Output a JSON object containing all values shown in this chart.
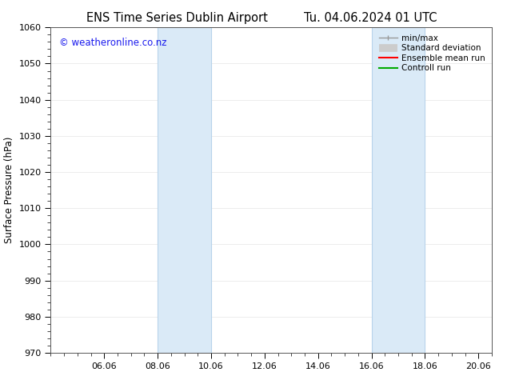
{
  "title_left": "ENS Time Series Dublin Airport",
  "title_right": "Tu. 04.06.2024 01 UTC",
  "ylabel": "Surface Pressure (hPa)",
  "ylim": [
    970,
    1060
  ],
  "yticks": [
    970,
    980,
    990,
    1000,
    1010,
    1020,
    1030,
    1040,
    1050,
    1060
  ],
  "xlim": [
    0,
    16.5
  ],
  "xtick_labels": [
    "06.06",
    "08.06",
    "10.06",
    "12.06",
    "14.06",
    "16.06",
    "18.06",
    "20.06"
  ],
  "xtick_positions": [
    2,
    4,
    6,
    8,
    10,
    12,
    14,
    16
  ],
  "shaded_bands": [
    {
      "x_start": 4,
      "x_end": 6
    },
    {
      "x_start": 12,
      "x_end": 14
    }
  ],
  "shaded_color": "#daeaf7",
  "shaded_edge_color": "#b8d4eb",
  "watermark_text": "© weatheronline.co.nz",
  "watermark_color": "#1a1aee",
  "legend_labels": [
    "min/max",
    "Standard deviation",
    "Ensemble mean run",
    "Controll run"
  ],
  "legend_colors": [
    "#999999",
    "#cccccc",
    "#ff0000",
    "#00aa00"
  ],
  "bg_color": "#ffffff",
  "title_fontsize": 10.5,
  "axis_label_fontsize": 8.5,
  "tick_fontsize": 8,
  "watermark_fontsize": 8.5,
  "legend_fontsize": 7.5
}
